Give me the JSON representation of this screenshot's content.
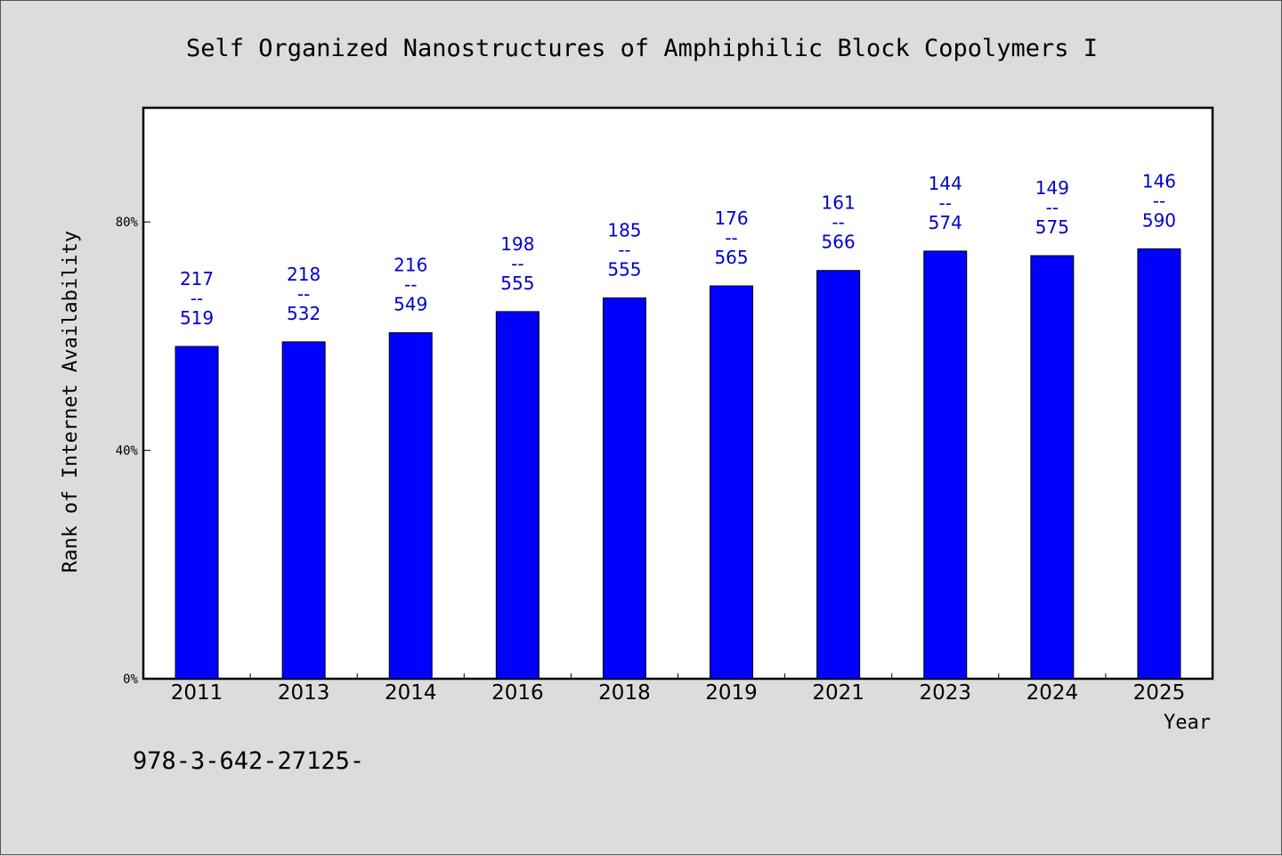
{
  "chart_data": {
    "type": "bar",
    "title": "Self Organized Nanostructures of Amphiphilic Block Copolymers I",
    "xlabel": "Year",
    "ylabel": "Rank of Internet Availability",
    "ylim": [
      0,
      100
    ],
    "yticks": [
      {
        "value": 0,
        "label": "0%"
      },
      {
        "value": 40,
        "label": "40%"
      },
      {
        "value": 80,
        "label": "80%"
      }
    ],
    "grid": false,
    "categories": [
      "2011",
      "2013",
      "2014",
      "2016",
      "2018",
      "2019",
      "2021",
      "2023",
      "2024",
      "2025"
    ],
    "values": [
      58.2,
      59.0,
      60.6,
      64.3,
      66.7,
      68.8,
      71.5,
      74.9,
      74.1,
      75.3
    ],
    "data_labels": [
      [
        "217",
        "--",
        "519"
      ],
      [
        "218",
        "--",
        "532"
      ],
      [
        "216",
        "--",
        "549"
      ],
      [
        "198",
        "--",
        "555"
      ],
      [
        "185",
        "--",
        "555"
      ],
      [
        "176",
        "--",
        "565"
      ],
      [
        "161",
        "--",
        "566"
      ],
      [
        "144",
        "--",
        "574"
      ],
      [
        "149",
        "--",
        "575"
      ],
      [
        "146",
        "--",
        "590"
      ]
    ],
    "bar_color": "#0000ff",
    "label_color": "#0000cc"
  },
  "footnote": "978-3-642-27125-"
}
